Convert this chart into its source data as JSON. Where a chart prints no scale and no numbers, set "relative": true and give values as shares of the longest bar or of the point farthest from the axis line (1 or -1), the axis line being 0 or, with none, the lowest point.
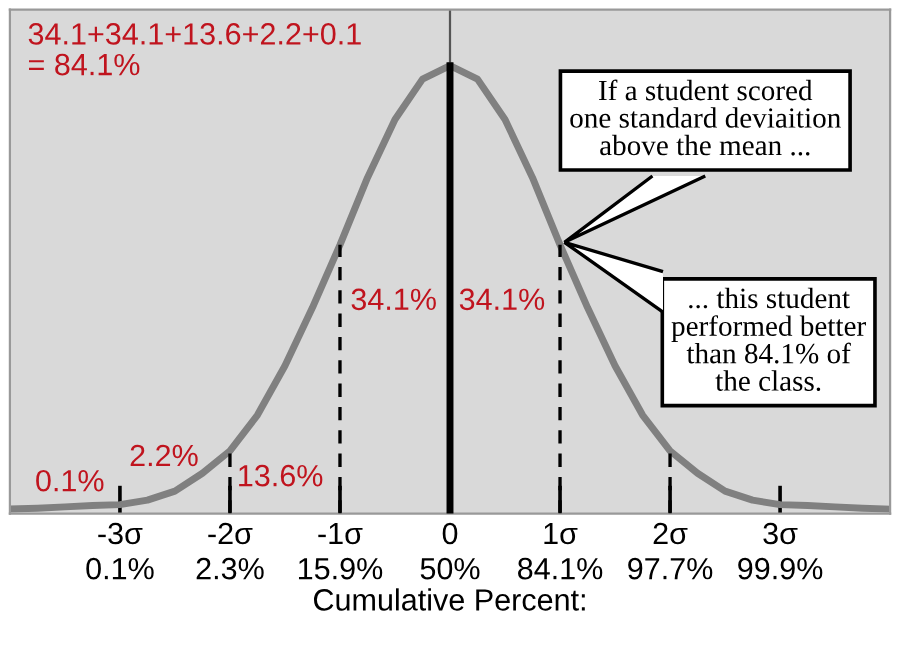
{
  "chart_data": {
    "type": "line",
    "relative": true,
    "xlabel": "Cumulative Percent:",
    "categories": [
      null,
      null,
      null,
      null,
      "-3σ\n0.1%",
      null,
      null,
      null,
      "-2σ\n2.3%",
      null,
      null,
      null,
      "-1σ\n15.9%",
      null,
      null,
      null,
      "0\n50%",
      null,
      null,
      null,
      "1σ\n84.1%",
      null,
      null,
      null,
      "2σ\n97.7%",
      null,
      null,
      null,
      "3σ\n99.9%",
      null,
      null,
      null,
      null
    ],
    "series": [
      {
        "color": "#808080",
        "values": [
          0.01,
          0.012,
          0.015,
          0.018,
          0.02,
          0.03,
          0.05,
          0.09,
          0.14,
          0.22,
          0.33,
          0.46,
          0.6,
          0.75,
          0.88,
          0.97,
          1,
          0.97,
          0.88,
          0.75,
          0.6,
          0.46,
          0.33,
          0.22,
          0.14,
          0.09,
          0.05,
          0.03,
          0.02,
          0.018,
          0.015,
          0.012,
          0.01
        ]
      }
    ],
    "ref_lines": [
      {
        "axis": "x",
        "value": "-2σ\n2.3%",
        "line_style": "dashed",
        "color": "#000000"
      },
      {
        "axis": "x",
        "value": "-1σ\n15.9%",
        "line_style": "dashed",
        "color": "#000000"
      },
      {
        "axis": "x",
        "value": "0\n50%",
        "line_style": "solid",
        "color": "#000000"
      },
      {
        "axis": "x",
        "value": "1σ\n84.1%",
        "line_style": "dashed",
        "color": "#000000"
      },
      {
        "axis": "x",
        "value": "2σ\n97.7%",
        "line_style": "dashed",
        "color": "#000000"
      }
    ],
    "annotations": [
      "34.1+34.1+13.6+2.2+0.1\n= 84.1%",
      "0.1%",
      "2.2%",
      "13.6%",
      "34.1%",
      "34.1%",
      "If a student scored\none standard deviaition\nabove the mean ...",
      "... this student\nperformed better\nthan 84.1% of\nthe class."
    ],
    "grid": false
  }
}
